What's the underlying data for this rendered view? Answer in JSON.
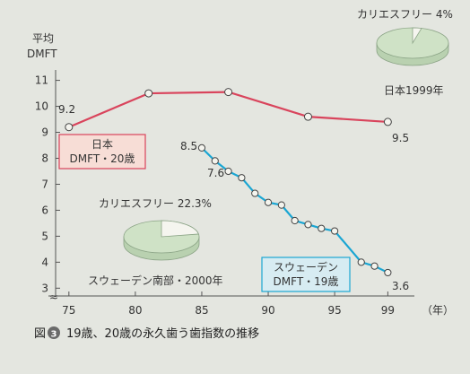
{
  "colors": {
    "japan_line": "#d9445c",
    "sweden_line": "#1aa6d3",
    "japan_box_bg": "#f7ddd6",
    "sweden_box_bg": "#d7ecf2",
    "pie_fill": "#cfe2c6",
    "pie_slice": "#f5f5ef",
    "axis": "#555555",
    "caption_badge": "#6a6a6a"
  },
  "chart_data": {
    "type": "line",
    "ylabel": "平均\nDMFT",
    "ylabel_lines": [
      "平均",
      "DMFT"
    ],
    "xunit": "（年）",
    "x_ticks": [
      75,
      80,
      85,
      90,
      95,
      99
    ],
    "y_ticks": [
      3,
      4,
      5,
      6,
      7,
      8,
      9,
      10,
      11
    ],
    "xlim": [
      74,
      101
    ],
    "ylim": [
      2.7,
      11.4
    ],
    "axis_break": "≈",
    "series": [
      {
        "name": "日本 DMFT・20歳",
        "name_lines": [
          "日本",
          "DMFT・20歳"
        ],
        "x": [
          75,
          81,
          87,
          93,
          99
        ],
        "y": [
          9.2,
          10.5,
          10.55,
          9.6,
          9.4
        ]
      },
      {
        "name": "スウェーデン DMFT・19歳",
        "name_lines": [
          "スウェーデン",
          "DMFT・19歳"
        ],
        "x": [
          85,
          86,
          87,
          88,
          89,
          90,
          91,
          92,
          93,
          94,
          95,
          97,
          98,
          99
        ],
        "y": [
          8.4,
          7.9,
          7.5,
          7.25,
          6.65,
          6.3,
          6.2,
          5.6,
          5.45,
          5.3,
          5.2,
          4.0,
          3.85,
          3.6
        ]
      }
    ],
    "data_labels": [
      "9.2",
      "9.5",
      "8.5",
      "7.6",
      "3.6"
    ],
    "annotations": {
      "japan_caries_free": "カリエスフリー 4%",
      "japan_year": "日本1999年",
      "sweden_caries_free": "カリエスフリー 22.3%",
      "sweden_region": "スウェーデン南部・2000年"
    },
    "pies": [
      {
        "label": "日本1999年",
        "caries_free_percent": 4
      },
      {
        "label": "スウェーデン南部・2000年",
        "caries_free_percent": 22.3
      }
    ],
    "grid": false,
    "caption_number": "3",
    "caption_prefix": "図",
    "caption": "19歳、20歳の永久歯う歯指数の推移"
  }
}
